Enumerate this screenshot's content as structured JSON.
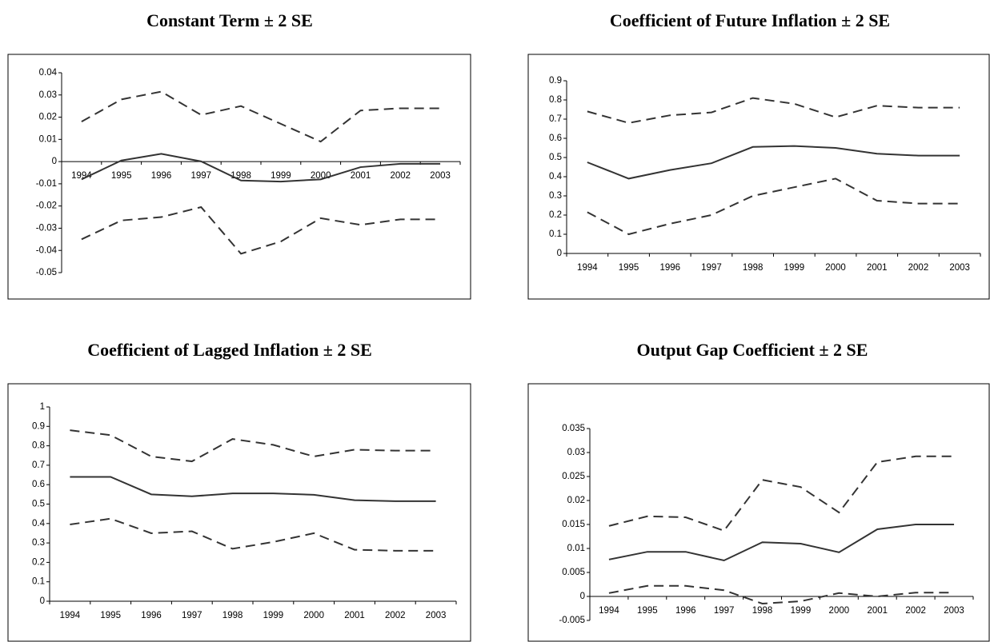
{
  "chart_data": [
    {
      "type": "line",
      "title": "Constant Term ± 2 SE",
      "categories": [
        "1994",
        "1995",
        "1996",
        "1997",
        "1998",
        "1999",
        "2000",
        "2001",
        "2002",
        "2003"
      ],
      "series": [
        {
          "color": "#333333",
          "style": "dashed",
          "values": [
            0.018,
            0.028,
            0.0315,
            0.021,
            0.025,
            0.017,
            0.009,
            0.023,
            0.024,
            0.024
          ]
        },
        {
          "color": "#333333",
          "style": "solid",
          "values": [
            -0.008,
            0.0005,
            0.0035,
            0.0001,
            -0.0085,
            -0.009,
            -0.008,
            -0.0025,
            -0.001,
            -0.001
          ]
        },
        {
          "color": "#333333",
          "style": "dashed",
          "values": [
            -0.035,
            -0.0265,
            -0.025,
            -0.0205,
            -0.0415,
            -0.036,
            -0.0255,
            -0.0285,
            -0.026,
            -0.026
          ]
        }
      ],
      "ylim": [
        -0.05,
        0.04
      ],
      "yticks": [
        0.04,
        0.03,
        0.02,
        0.01,
        0,
        -0.01,
        -0.02,
        -0.03,
        -0.04,
        -0.05
      ]
    },
    {
      "type": "line",
      "title": "Coefficient of Future Inflation ± 2 SE",
      "categories": [
        "1994",
        "1995",
        "1996",
        "1997",
        "1998",
        "1999",
        "2000",
        "2001",
        "2002",
        "2003"
      ],
      "series": [
        {
          "color": "#333333",
          "style": "dashed",
          "values": [
            0.74,
            0.68,
            0.72,
            0.735,
            0.81,
            0.78,
            0.71,
            0.77,
            0.76,
            0.76
          ]
        },
        {
          "color": "#333333",
          "style": "solid",
          "values": [
            0.475,
            0.39,
            0.435,
            0.47,
            0.555,
            0.56,
            0.55,
            0.52,
            0.51,
            0.51
          ]
        },
        {
          "color": "#333333",
          "style": "dashed",
          "values": [
            0.215,
            0.1,
            0.155,
            0.2,
            0.3,
            0.345,
            0.39,
            0.275,
            0.26,
            0.26
          ]
        }
      ],
      "ylim": [
        0,
        0.9
      ],
      "yticks": [
        0.9,
        0.8,
        0.7,
        0.6,
        0.5,
        0.4,
        0.3,
        0.2,
        0.1,
        0
      ]
    },
    {
      "type": "line",
      "title": "Coefficient of Lagged Inflation ± 2 SE",
      "categories": [
        "1994",
        "1995",
        "1996",
        "1997",
        "1998",
        "1999",
        "2000",
        "2001",
        "2002",
        "2003"
      ],
      "series": [
        {
          "color": "#333333",
          "style": "dashed",
          "values": [
            0.88,
            0.855,
            0.745,
            0.72,
            0.835,
            0.805,
            0.745,
            0.78,
            0.775,
            0.775
          ]
        },
        {
          "color": "#333333",
          "style": "solid",
          "values": [
            0.64,
            0.64,
            0.55,
            0.54,
            0.555,
            0.555,
            0.548,
            0.52,
            0.515,
            0.515
          ]
        },
        {
          "color": "#333333",
          "style": "dashed",
          "values": [
            0.395,
            0.425,
            0.35,
            0.36,
            0.27,
            0.305,
            0.35,
            0.265,
            0.26,
            0.26
          ]
        }
      ],
      "ylim": [
        0,
        1
      ],
      "yticks": [
        1,
        0.9,
        0.8,
        0.7,
        0.6,
        0.5,
        0.4,
        0.3,
        0.2,
        0.1,
        0
      ]
    },
    {
      "type": "line",
      "title": "Output Gap Coefficient ± 2 SE",
      "categories": [
        "1994",
        "1995",
        "1996",
        "1997",
        "1998",
        "1999",
        "2000",
        "2001",
        "2002",
        "2003"
      ],
      "series": [
        {
          "color": "#333333",
          "style": "dashed",
          "values": [
            0.0147,
            0.0167,
            0.0165,
            0.0137,
            0.0243,
            0.0228,
            0.0175,
            0.028,
            0.0292,
            0.0292
          ]
        },
        {
          "color": "#333333",
          "style": "solid",
          "values": [
            0.0077,
            0.0093,
            0.0093,
            0.0075,
            0.0113,
            0.011,
            0.0092,
            0.014,
            0.015,
            0.015
          ]
        },
        {
          "color": "#333333",
          "style": "dashed",
          "values": [
            0.0007,
            0.0022,
            0.0022,
            0.0013,
            -0.0015,
            -0.001,
            0.0007,
            0,
            0.0008,
            0.0008
          ]
        }
      ],
      "ylim": [
        -0.005,
        0.035
      ],
      "yticks": [
        0.035,
        0.03,
        0.025,
        0.02,
        0.015,
        0.01,
        0.005,
        0,
        -0.005
      ]
    }
  ]
}
